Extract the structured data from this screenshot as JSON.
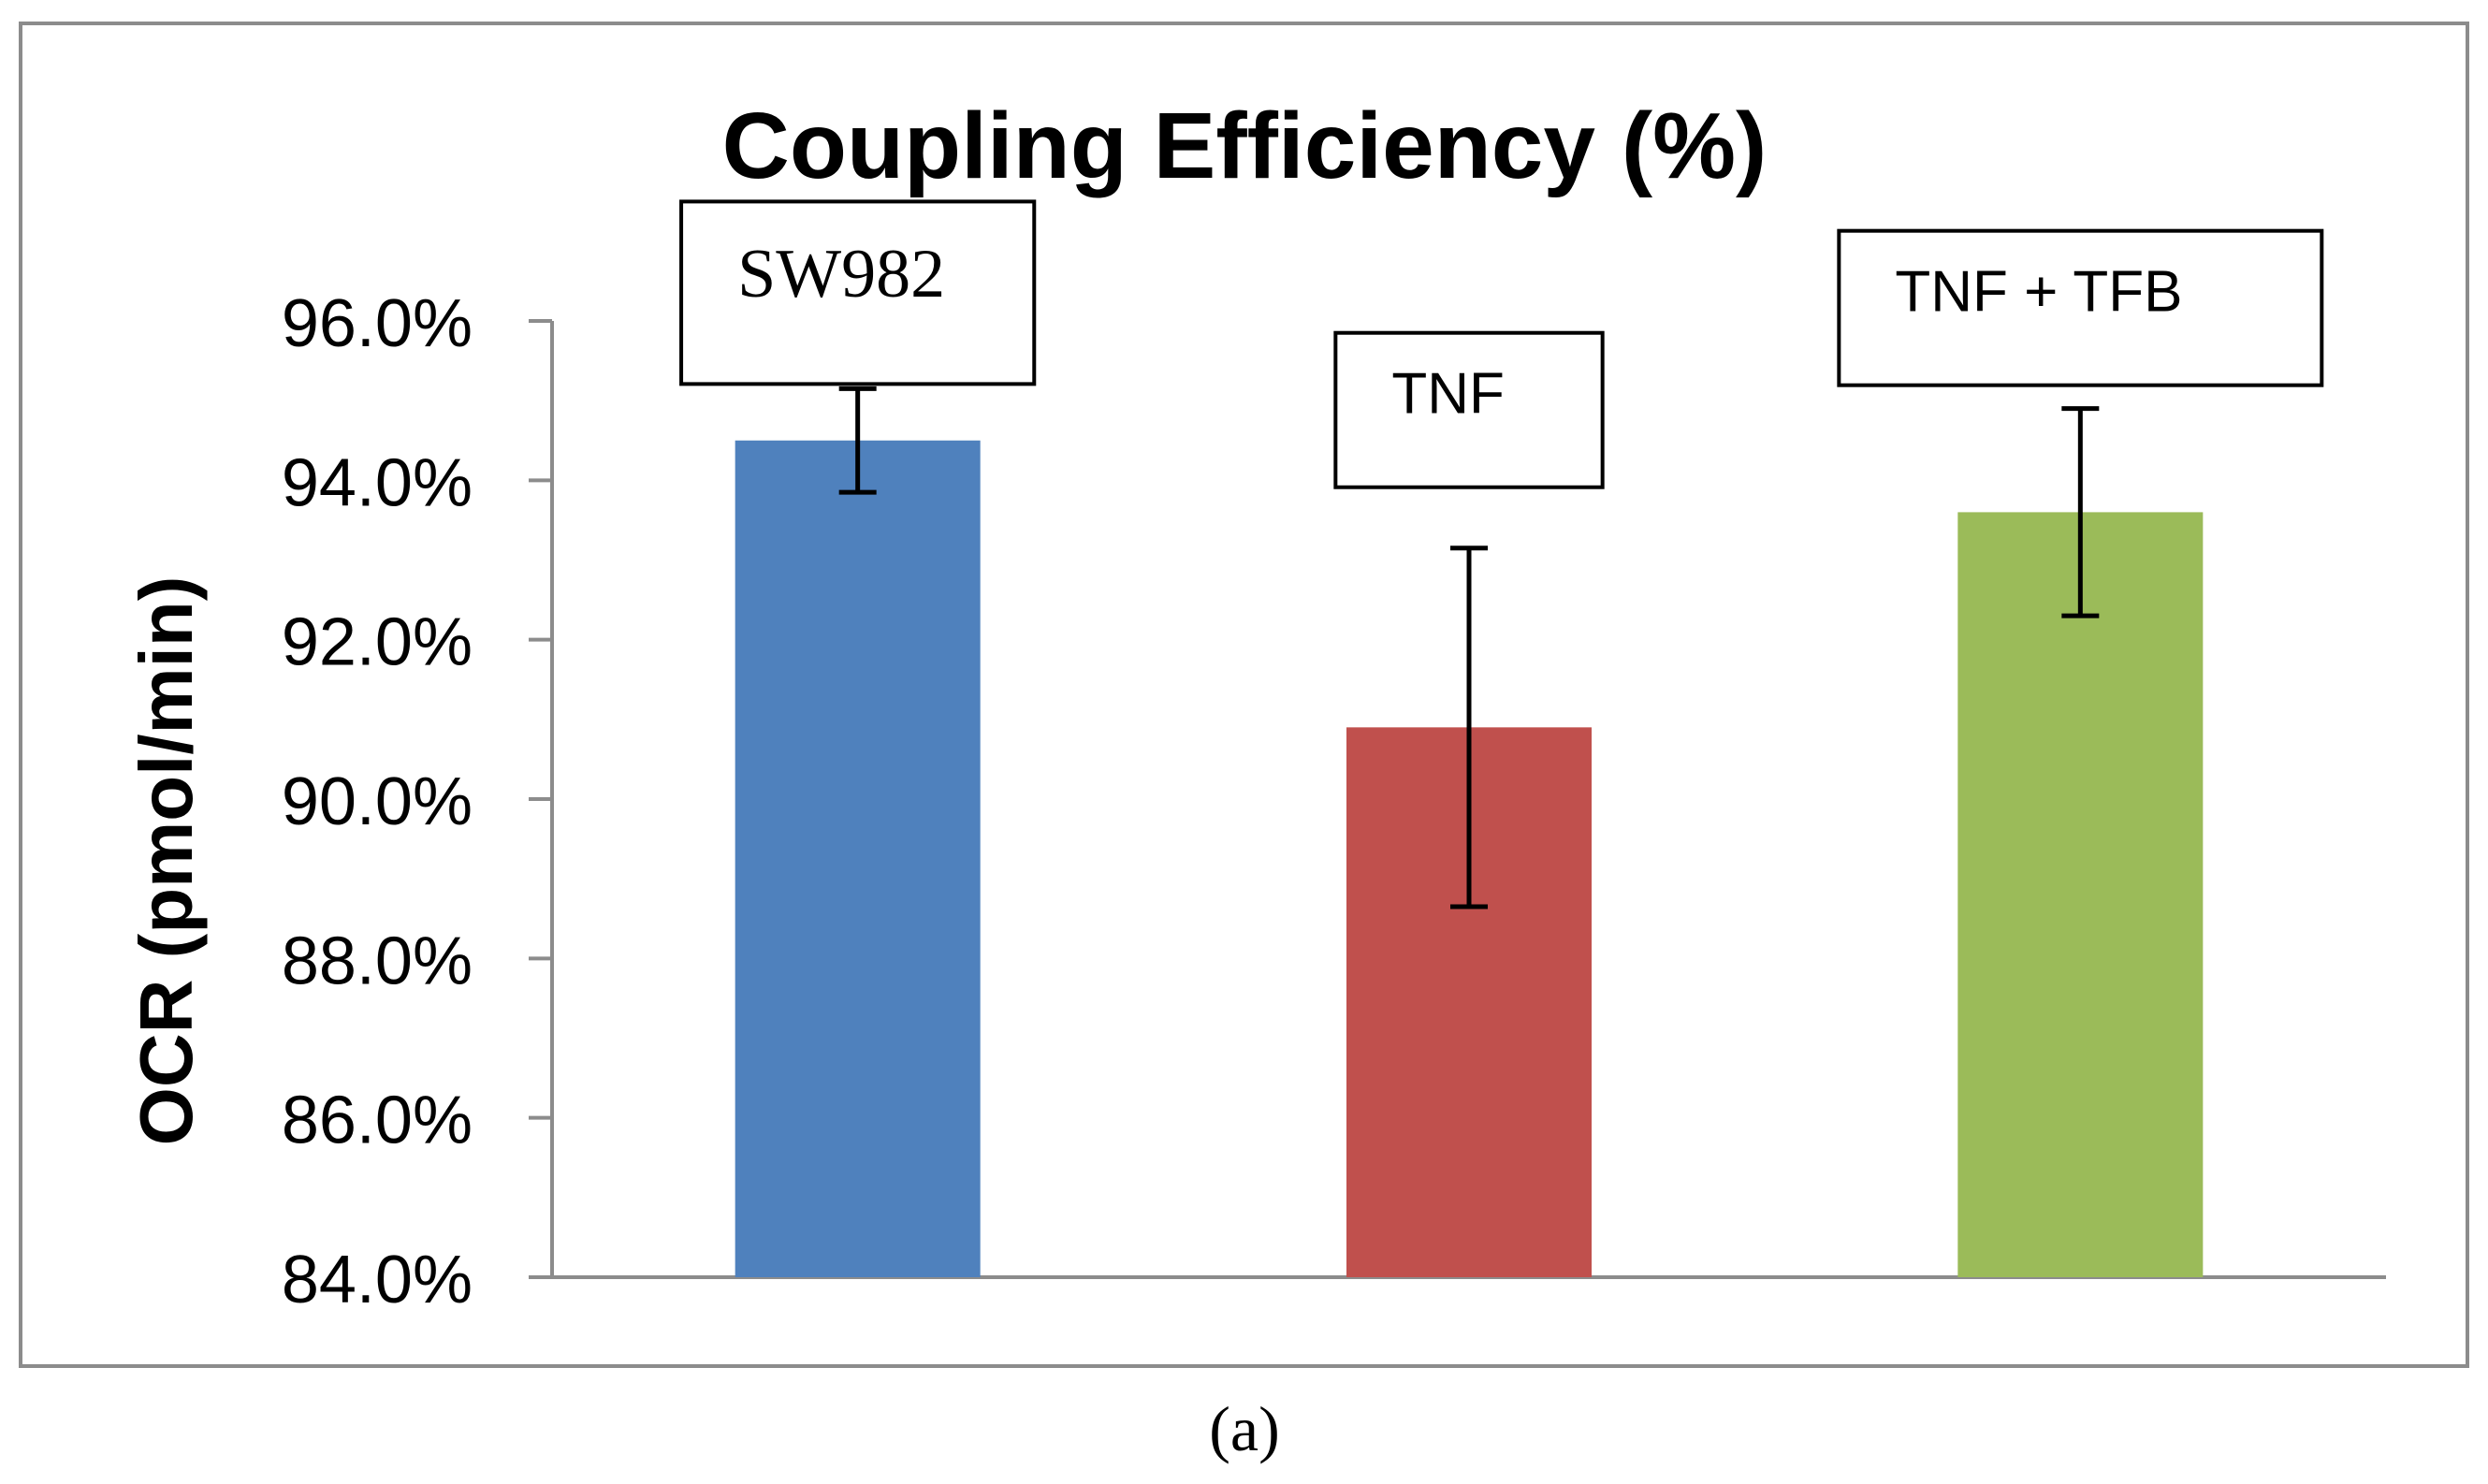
{
  "chart_data": {
    "type": "bar",
    "title": "Coupling Efficiency (%)",
    "xlabel": "",
    "ylabel": "OCR (pmol/min)",
    "ylim": [
      84.0,
      96.0
    ],
    "yticks": [
      84.0,
      86.0,
      88.0,
      90.0,
      92.0,
      94.0,
      96.0
    ],
    "ytick_labels": [
      "84.0%",
      "86.0%",
      "88.0%",
      "90.0%",
      "92.0%",
      "94.0%",
      "96.0%"
    ],
    "categories": [
      "SW982",
      "TNF",
      "TNF + TFB"
    ],
    "values": [
      94.5,
      90.9,
      93.6
    ],
    "error_bars": [
      0.65,
      2.25,
      1.3
    ],
    "colors": [
      "#4f81bd",
      "#c0504d",
      "#9bbb59"
    ],
    "grid": false,
    "legend": "none",
    "caption": "(a)"
  }
}
